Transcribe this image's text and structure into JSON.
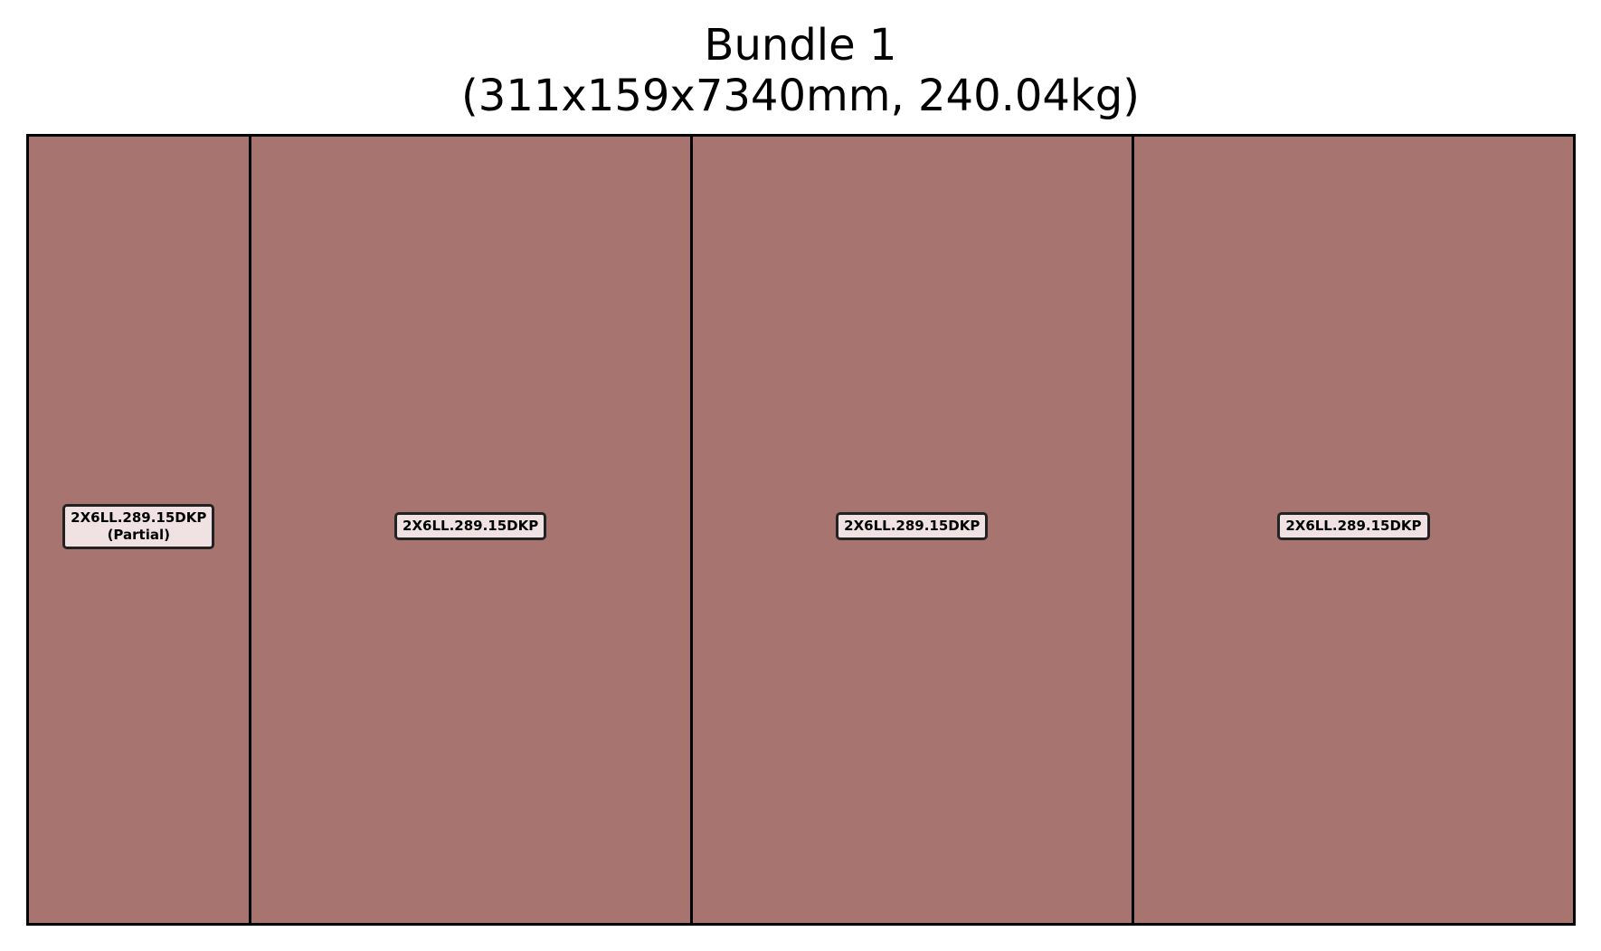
{
  "diagram": {
    "title": "Bundle 1",
    "subtitle": "(311x159x7340mm, 240.04kg)",
    "piece_fill_color": "#a87470",
    "label_background_color": "#f0e2e2",
    "border_color": "#000000",
    "pieces": [
      {
        "label": "2X6LL.289.15DKP",
        "note": "(Partial)",
        "relative_length": 0.5
      },
      {
        "label": "2X6LL.289.15DKP",
        "note": "",
        "relative_length": 1
      },
      {
        "label": "2X6LL.289.15DKP",
        "note": "",
        "relative_length": 1
      },
      {
        "label": "2X6LL.289.15DKP",
        "note": "",
        "relative_length": 1
      }
    ]
  }
}
